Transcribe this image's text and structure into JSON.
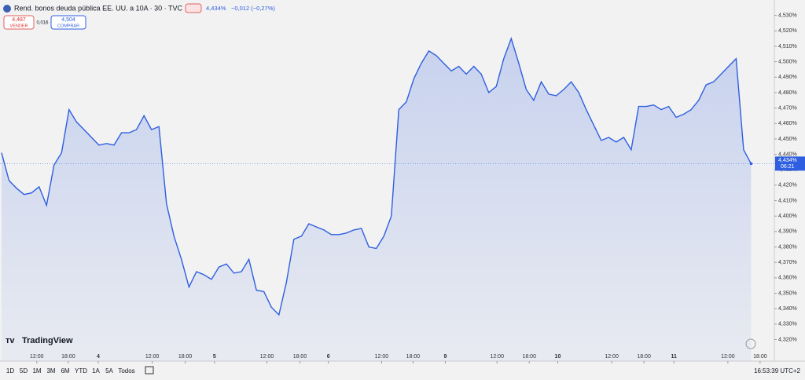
{
  "chart_data": {
    "type": "line",
    "title": "Rend. bonos deuda pública EE. UU. a 10A · 30 · TVC",
    "last_price": "4,434%",
    "change": "−0,012 (−0,27%)",
    "sell": {
      "price": "4,487",
      "label": "VENDER"
    },
    "spread": "0,016",
    "buy": {
      "price": "4,504",
      "label": "COMPRAR"
    },
    "price_tag": {
      "price": "4,434%",
      "countdown": "06:21"
    },
    "series": [
      {
        "color": "#2f5fe0",
        "values": [
          4.441,
          4.423,
          4.418,
          4.414,
          4.415,
          4.419,
          4.407,
          4.433,
          4.441,
          4.469,
          4.461,
          4.456,
          4.451,
          4.446,
          4.447,
          4.446,
          4.454,
          4.454,
          4.456,
          4.465,
          4.456,
          4.458,
          4.408,
          4.387,
          4.372,
          4.354,
          4.364,
          4.362,
          4.359,
          4.367,
          4.369,
          4.363,
          4.364,
          4.372,
          4.352,
          4.351,
          4.341,
          4.336,
          4.357,
          4.385,
          4.387,
          4.395,
          4.393,
          4.391,
          4.388,
          4.388,
          4.389,
          4.391,
          4.392,
          4.38,
          4.379,
          4.387,
          4.4,
          4.469,
          4.474,
          4.489,
          4.499,
          4.507,
          4.504,
          4.499,
          4.494,
          4.497,
          4.492,
          4.497,
          4.492,
          4.48,
          4.484,
          4.502,
          4.515,
          4.499,
          4.482,
          4.475,
          4.487,
          4.479,
          4.478,
          4.482,
          4.487,
          4.48,
          4.469,
          4.459,
          4.449,
          4.451,
          4.448,
          4.451,
          4.443,
          4.471,
          4.471,
          4.472,
          4.469,
          4.471,
          4.464,
          4.466,
          4.469,
          4.475,
          4.485,
          4.487,
          4.492,
          4.497,
          4.502,
          4.443,
          4.434
        ]
      }
    ],
    "xlim": [
      0,
      103.1
    ],
    "xticks": [
      {
        "value": 4.7,
        "label": "12:00"
      },
      {
        "value": 8.9,
        "label": "18:00"
      },
      {
        "value": 12.9,
        "label": "4"
      },
      {
        "value": 20.1,
        "label": "12:00"
      },
      {
        "value": 24.5,
        "label": "18:00"
      },
      {
        "value": 28.4,
        "label": "5"
      },
      {
        "value": 35.4,
        "label": "12:00"
      },
      {
        "value": 39.8,
        "label": "18:00"
      },
      {
        "value": 43.6,
        "label": "6"
      },
      {
        "value": 50.7,
        "label": "12:00"
      },
      {
        "value": 54.9,
        "label": "18:00"
      },
      {
        "value": 59.2,
        "label": "9"
      },
      {
        "value": 66.1,
        "label": "12:00"
      },
      {
        "value": 70.4,
        "label": "18:00"
      },
      {
        "value": 74.2,
        "label": "10"
      },
      {
        "value": 81.4,
        "label": "12:00"
      },
      {
        "value": 85.7,
        "label": "18:00"
      },
      {
        "value": 89.7,
        "label": "11"
      },
      {
        "value": 96.9,
        "label": "12:00"
      },
      {
        "value": 101.2,
        "label": "18:00"
      }
    ],
    "ylim": [
      4.306,
      4.54
    ],
    "yticks": [
      {
        "value": 4.32,
        "label": "4,320%"
      },
      {
        "value": 4.33,
        "label": "4,330%"
      },
      {
        "value": 4.34,
        "label": "4,340%"
      },
      {
        "value": 4.35,
        "label": "4,350%"
      },
      {
        "value": 4.36,
        "label": "4,360%"
      },
      {
        "value": 4.37,
        "label": "4,370%"
      },
      {
        "value": 4.38,
        "label": "4,380%"
      },
      {
        "value": 4.39,
        "label": "4,390%"
      },
      {
        "value": 4.4,
        "label": "4,400%"
      },
      {
        "value": 4.41,
        "label": "4,410%"
      },
      {
        "value": 4.42,
        "label": "4,420%"
      },
      {
        "value": 4.43,
        "label": "4,430%"
      },
      {
        "value": 4.44,
        "label": "4,440%"
      },
      {
        "value": 4.45,
        "label": "4,450%"
      },
      {
        "value": 4.46,
        "label": "4,460%"
      },
      {
        "value": 4.47,
        "label": "4,470%"
      },
      {
        "value": 4.48,
        "label": "4,480%"
      },
      {
        "value": 4.49,
        "label": "4,490%"
      },
      {
        "value": 4.5,
        "label": "4,500%"
      },
      {
        "value": 4.51,
        "label": "4,510%"
      },
      {
        "value": 4.52,
        "label": "4,520%"
      },
      {
        "value": 4.53,
        "label": "4,530%"
      }
    ],
    "logo": "TradingView",
    "ranges": [
      "1D",
      "5D",
      "1M",
      "3M",
      "6M",
      "YTD",
      "1A",
      "5A",
      "Todos"
    ],
    "clock": "16:53:39 UTC+2"
  }
}
